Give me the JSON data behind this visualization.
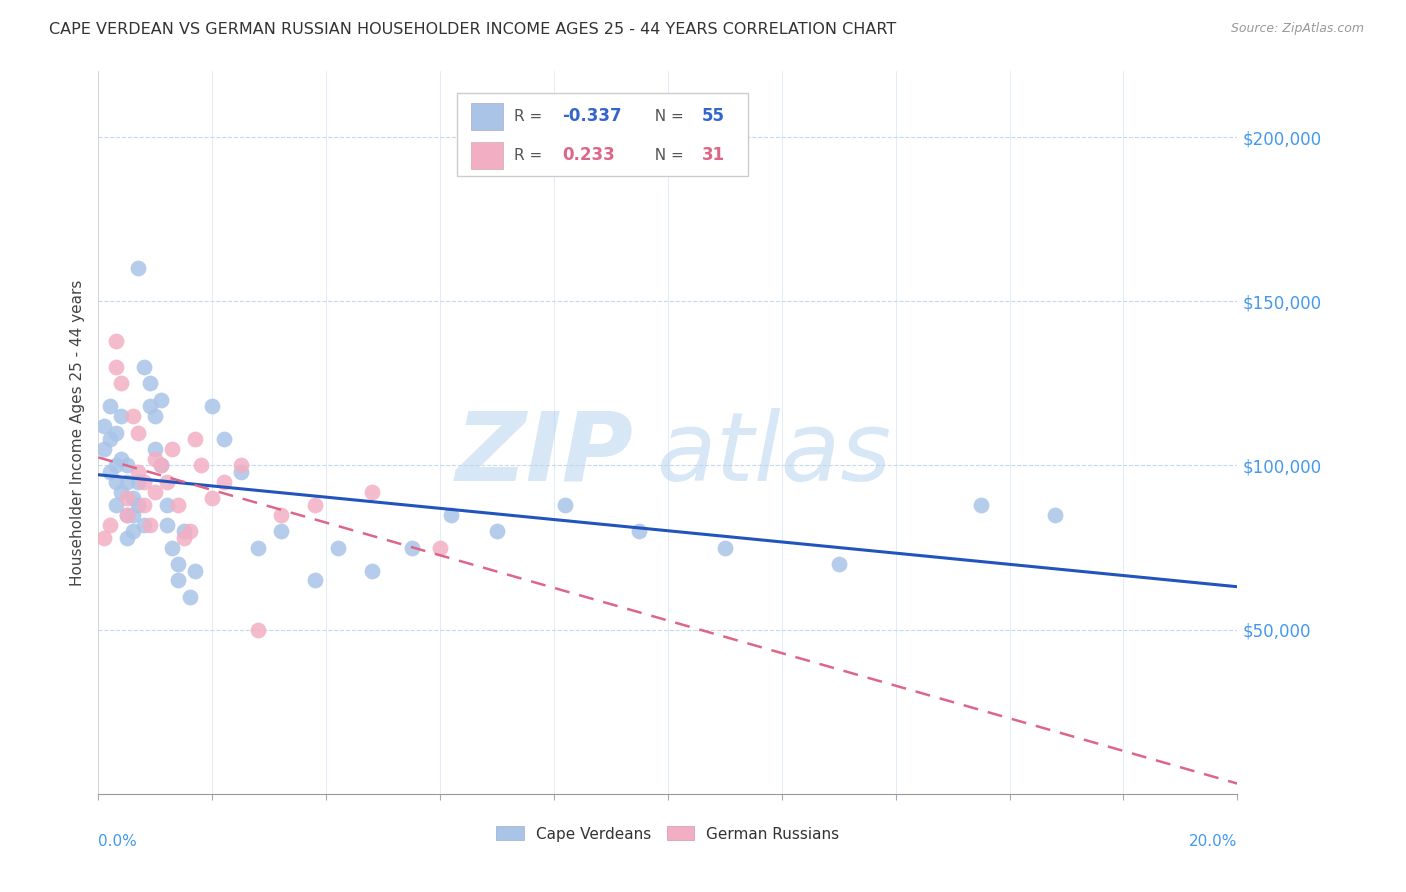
{
  "title": "CAPE VERDEAN VS GERMAN RUSSIAN HOUSEHOLDER INCOME AGES 25 - 44 YEARS CORRELATION CHART",
  "source": "Source: ZipAtlas.com",
  "ylabel": "Householder Income Ages 25 - 44 years",
  "ylim": [
    0,
    220000
  ],
  "xlim": [
    0.0,
    0.2
  ],
  "yticks": [
    50000,
    100000,
    150000,
    200000
  ],
  "ytick_labels": [
    "$50,000",
    "$100,000",
    "$150,000",
    "$200,000"
  ],
  "blue_color": "#aac4e8",
  "pink_color": "#f2afc4",
  "line_blue": "#2255bb",
  "line_pink": "#dd6688",
  "watermark_zip": "ZIP",
  "watermark_atlas": "atlas",
  "r_blue": "-0.337",
  "n_blue": "55",
  "r_pink": "0.233",
  "n_pink": "31",
  "cape_verdeans_x": [
    0.001,
    0.001,
    0.002,
    0.002,
    0.002,
    0.003,
    0.003,
    0.003,
    0.003,
    0.004,
    0.004,
    0.004,
    0.005,
    0.005,
    0.005,
    0.005,
    0.006,
    0.006,
    0.006,
    0.007,
    0.007,
    0.007,
    0.008,
    0.008,
    0.009,
    0.009,
    0.01,
    0.01,
    0.011,
    0.011,
    0.012,
    0.012,
    0.013,
    0.014,
    0.014,
    0.015,
    0.016,
    0.017,
    0.02,
    0.022,
    0.025,
    0.028,
    0.032,
    0.038,
    0.042,
    0.048,
    0.055,
    0.062,
    0.07,
    0.082,
    0.095,
    0.11,
    0.13,
    0.155,
    0.168
  ],
  "cape_verdeans_y": [
    105000,
    112000,
    98000,
    108000,
    118000,
    95000,
    100000,
    110000,
    88000,
    102000,
    92000,
    115000,
    85000,
    95000,
    100000,
    78000,
    90000,
    85000,
    80000,
    160000,
    88000,
    95000,
    130000,
    82000,
    125000,
    118000,
    115000,
    105000,
    100000,
    120000,
    82000,
    88000,
    75000,
    70000,
    65000,
    80000,
    60000,
    68000,
    118000,
    108000,
    98000,
    75000,
    80000,
    65000,
    75000,
    68000,
    75000,
    85000,
    80000,
    88000,
    80000,
    75000,
    70000,
    88000,
    85000
  ],
  "german_russians_x": [
    0.001,
    0.002,
    0.003,
    0.003,
    0.004,
    0.005,
    0.005,
    0.006,
    0.007,
    0.007,
    0.008,
    0.008,
    0.009,
    0.01,
    0.01,
    0.011,
    0.012,
    0.013,
    0.014,
    0.015,
    0.016,
    0.017,
    0.018,
    0.02,
    0.022,
    0.025,
    0.028,
    0.032,
    0.038,
    0.048,
    0.06
  ],
  "german_russians_y": [
    78000,
    82000,
    138000,
    130000,
    125000,
    90000,
    85000,
    115000,
    110000,
    98000,
    95000,
    88000,
    82000,
    102000,
    92000,
    100000,
    95000,
    105000,
    88000,
    78000,
    80000,
    108000,
    100000,
    90000,
    95000,
    100000,
    50000,
    85000,
    88000,
    92000,
    75000
  ]
}
